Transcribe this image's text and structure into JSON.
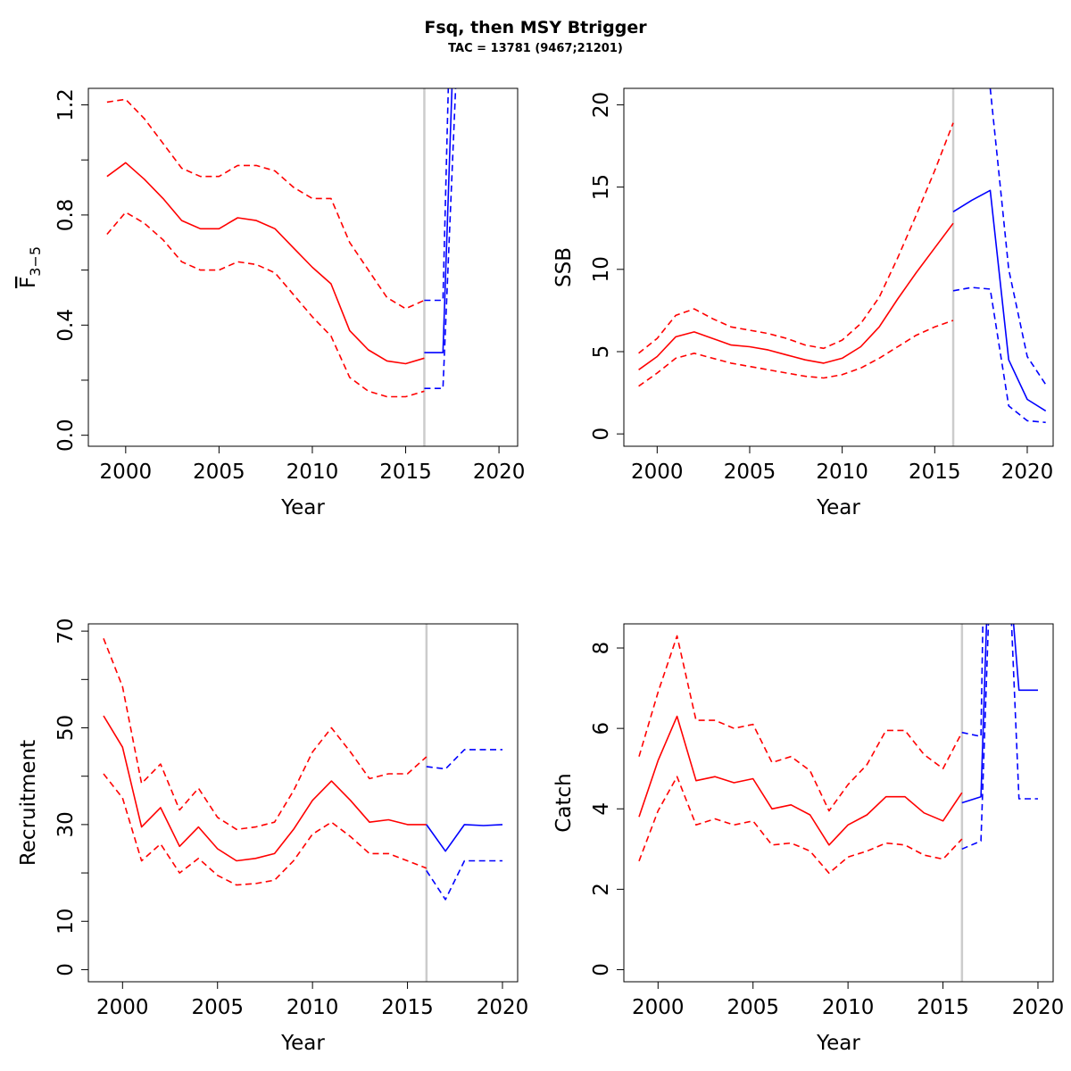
{
  "title": "Fsq, then MSY Btrigger",
  "subtitle": "TAC = 13781 (9467;21201)",
  "colors": {
    "historic": "#ff0000",
    "forecast": "#0000ff",
    "divider": "#cccccc",
    "frame": "#000000"
  },
  "chart_data": [
    {
      "type": "line",
      "id": "fbar",
      "xlabel": "Year",
      "ylabel_main": "F",
      "ylabel_sub": "3−5",
      "ylabel_overline": true,
      "xlim": [
        1998,
        2021
      ],
      "ylim": [
        -0.04,
        1.26
      ],
      "x_ticks": [
        2000,
        2005,
        2010,
        2015,
        2020
      ],
      "y_ticks": [
        0.0,
        0.2,
        0.4,
        0.6,
        0.8,
        1.0,
        1.2
      ],
      "y_tick_labels": [
        "0.0",
        "",
        "0.4",
        "",
        "0.8",
        "",
        "1.2"
      ],
      "divider_x": 2016,
      "series": [
        {
          "role": "historic-median",
          "color": "red",
          "dash": false,
          "x": [
            1999,
            2000,
            2001,
            2002,
            2003,
            2004,
            2005,
            2006,
            2007,
            2008,
            2009,
            2010,
            2011,
            2012,
            2013,
            2014,
            2015,
            2016
          ],
          "y": [
            0.94,
            0.99,
            0.93,
            0.86,
            0.78,
            0.75,
            0.75,
            0.79,
            0.78,
            0.75,
            0.68,
            0.61,
            0.55,
            0.38,
            0.31,
            0.27,
            0.26,
            0.28
          ]
        },
        {
          "role": "historic-upper",
          "color": "red",
          "dash": true,
          "x": [
            1999,
            2000,
            2001,
            2002,
            2003,
            2004,
            2005,
            2006,
            2007,
            2008,
            2009,
            2010,
            2011,
            2012,
            2013,
            2014,
            2015,
            2016
          ],
          "y": [
            1.21,
            1.22,
            1.15,
            1.06,
            0.97,
            0.94,
            0.94,
            0.98,
            0.98,
            0.96,
            0.9,
            0.86,
            0.86,
            0.7,
            0.6,
            0.5,
            0.46,
            0.49
          ]
        },
        {
          "role": "historic-lower",
          "color": "red",
          "dash": true,
          "x": [
            1999,
            2000,
            2001,
            2002,
            2003,
            2004,
            2005,
            2006,
            2007,
            2008,
            2009,
            2010,
            2011,
            2012,
            2013,
            2014,
            2015,
            2016
          ],
          "y": [
            0.73,
            0.81,
            0.77,
            0.71,
            0.63,
            0.6,
            0.6,
            0.63,
            0.62,
            0.59,
            0.51,
            0.43,
            0.36,
            0.21,
            0.16,
            0.14,
            0.14,
            0.16
          ]
        },
        {
          "role": "forecast-median",
          "color": "blue",
          "dash": false,
          "x": [
            2016,
            2017,
            2017.5
          ],
          "y": [
            0.3,
            0.3,
            1.3
          ]
        },
        {
          "role": "forecast-upper",
          "color": "blue",
          "dash": true,
          "x": [
            2016,
            2017,
            2017.3
          ],
          "y": [
            0.49,
            0.49,
            1.3
          ]
        },
        {
          "role": "forecast-lower",
          "color": "blue",
          "dash": true,
          "x": [
            2016,
            2017,
            2017.7
          ],
          "y": [
            0.17,
            0.17,
            1.3
          ]
        }
      ]
    },
    {
      "type": "line",
      "id": "ssb",
      "xlabel": "Year",
      "ylabel_main": "SSB",
      "xlim": [
        1998.2,
        2021.4
      ],
      "ylim": [
        -0.75,
        21.0
      ],
      "x_ticks": [
        2000,
        2005,
        2010,
        2015,
        2020
      ],
      "y_ticks": [
        0,
        5,
        10,
        15,
        20
      ],
      "y_tick_labels": [
        "0",
        "5",
        "10",
        "15",
        "20"
      ],
      "divider_x": 2016,
      "series": [
        {
          "role": "historic-median",
          "color": "red",
          "dash": false,
          "x": [
            1999,
            2000,
            2001,
            2002,
            2003,
            2004,
            2005,
            2006,
            2007,
            2008,
            2009,
            2010,
            2011,
            2012,
            2013,
            2014,
            2015,
            2016
          ],
          "y": [
            3.9,
            4.7,
            5.9,
            6.2,
            5.8,
            5.4,
            5.3,
            5.1,
            4.8,
            4.5,
            4.3,
            4.6,
            5.3,
            6.5,
            8.2,
            9.8,
            11.3,
            12.8
          ]
        },
        {
          "role": "historic-upper",
          "color": "red",
          "dash": true,
          "x": [
            1999,
            2000,
            2001,
            2002,
            2003,
            2004,
            2005,
            2006,
            2007,
            2008,
            2009,
            2010,
            2011,
            2012,
            2013,
            2014,
            2015,
            2016
          ],
          "y": [
            4.9,
            5.8,
            7.2,
            7.6,
            7.0,
            6.5,
            6.3,
            6.1,
            5.8,
            5.4,
            5.2,
            5.7,
            6.7,
            8.3,
            10.7,
            13.3,
            16.0,
            18.9
          ]
        },
        {
          "role": "historic-lower",
          "color": "red",
          "dash": true,
          "x": [
            1999,
            2000,
            2001,
            2002,
            2003,
            2004,
            2005,
            2006,
            2007,
            2008,
            2009,
            2010,
            2011,
            2012,
            2013,
            2014,
            2015,
            2016
          ],
          "y": [
            2.9,
            3.7,
            4.6,
            4.9,
            4.6,
            4.3,
            4.1,
            3.9,
            3.7,
            3.5,
            3.4,
            3.6,
            4.0,
            4.6,
            5.3,
            6.0,
            6.5,
            6.9
          ]
        },
        {
          "role": "forecast-median",
          "color": "blue",
          "dash": false,
          "x": [
            2016,
            2017,
            2018,
            2019,
            2020,
            2021
          ],
          "y": [
            13.5,
            14.2,
            14.8,
            4.5,
            2.1,
            1.4
          ]
        },
        {
          "role": "forecast-upper",
          "color": "blue",
          "dash": true,
          "x": [
            2018,
            2018.5,
            2019,
            2020,
            2021
          ],
          "y": [
            21.0,
            15.5,
            10.0,
            4.7,
            3.0
          ]
        },
        {
          "role": "forecast-lower",
          "color": "blue",
          "dash": true,
          "x": [
            2016,
            2017,
            2018,
            2019,
            2020,
            2021
          ],
          "y": [
            8.7,
            8.9,
            8.8,
            1.7,
            0.8,
            0.7
          ]
        }
      ]
    },
    {
      "type": "line",
      "id": "recruitment",
      "xlabel": "Year",
      "ylabel_main": "Recruitment",
      "xlim": [
        1998.2,
        2020.8
      ],
      "ylim": [
        -2.5,
        71.5
      ],
      "x_ticks": [
        2000,
        2005,
        2010,
        2015,
        2020
      ],
      "y_ticks": [
        0,
        10,
        20,
        30,
        40,
        50,
        60,
        70
      ],
      "y_tick_labels": [
        "0",
        "10",
        "",
        "30",
        "",
        "50",
        "",
        "70"
      ],
      "divider_x": 2016,
      "series": [
        {
          "role": "historic-median",
          "color": "red",
          "dash": false,
          "x": [
            1999,
            2000,
            2001,
            2002,
            2003,
            2004,
            2005,
            2006,
            2007,
            2008,
            2009,
            2010,
            2011,
            2012,
            2013,
            2014,
            2015,
            2016
          ],
          "y": [
            52.5,
            46,
            29.5,
            33.5,
            25.5,
            29.5,
            25,
            22.5,
            23,
            24,
            29,
            35,
            39,
            35,
            30.5,
            31,
            30,
            30
          ]
        },
        {
          "role": "historic-upper",
          "color": "red",
          "dash": true,
          "x": [
            1999,
            2000,
            2001,
            2002,
            2003,
            2004,
            2005,
            2006,
            2007,
            2008,
            2009,
            2010,
            2011,
            2012,
            2013,
            2014,
            2015,
            2016
          ],
          "y": [
            68.5,
            58.5,
            38.5,
            42.5,
            33,
            37.5,
            31.5,
            29,
            29.5,
            30.5,
            37,
            45,
            50,
            45,
            39.5,
            40.5,
            40.5,
            44
          ]
        },
        {
          "role": "historic-lower",
          "color": "red",
          "dash": true,
          "x": [
            1999,
            2000,
            2001,
            2002,
            2003,
            2004,
            2005,
            2006,
            2007,
            2008,
            2009,
            2010,
            2011,
            2012,
            2013,
            2014,
            2015,
            2016
          ],
          "y": [
            40.5,
            35.5,
            22.5,
            26,
            20,
            23,
            19.5,
            17.5,
            17.8,
            18.5,
            22.5,
            28,
            30.5,
            27.5,
            24,
            24,
            22.5,
            21
          ]
        },
        {
          "role": "forecast-median",
          "color": "blue",
          "dash": false,
          "x": [
            2016,
            2017,
            2018,
            2019,
            2020
          ],
          "y": [
            30,
            24.5,
            30,
            29.8,
            30
          ]
        },
        {
          "role": "forecast-upper",
          "color": "blue",
          "dash": true,
          "x": [
            2016,
            2017,
            2018,
            2019,
            2020
          ],
          "y": [
            42,
            41.5,
            45.5,
            45.5,
            45.5
          ]
        },
        {
          "role": "forecast-lower",
          "color": "blue",
          "dash": true,
          "x": [
            2016,
            2017,
            2018,
            2019,
            2020
          ],
          "y": [
            20.5,
            14.5,
            22.5,
            22.5,
            22.5
          ]
        }
      ]
    },
    {
      "type": "line",
      "id": "catch",
      "xlabel": "Year",
      "ylabel_main": "Catch",
      "xlim": [
        1998.2,
        2020.8
      ],
      "ylim": [
        -0.3,
        8.6
      ],
      "x_ticks": [
        2000,
        2005,
        2010,
        2015,
        2020
      ],
      "y_ticks": [
        0,
        2,
        4,
        6,
        8
      ],
      "y_tick_labels": [
        "0",
        "2",
        "4",
        "6",
        "8"
      ],
      "divider_x": 2016,
      "series": [
        {
          "role": "historic-median",
          "color": "red",
          "dash": false,
          "x": [
            1999,
            2000,
            2001,
            2002,
            2003,
            2004,
            2005,
            2006,
            2007,
            2008,
            2009,
            2010,
            2011,
            2012,
            2013,
            2014,
            2015,
            2016
          ],
          "y": [
            3.8,
            5.2,
            6.3,
            4.7,
            4.8,
            4.65,
            4.75,
            4.0,
            4.1,
            3.85,
            3.1,
            3.6,
            3.85,
            4.3,
            4.3,
            3.9,
            3.7,
            4.4
          ]
        },
        {
          "role": "historic-upper",
          "color": "red",
          "dash": true,
          "x": [
            1999,
            2000,
            2001,
            2002,
            2003,
            2004,
            2005,
            2006,
            2007,
            2008,
            2009,
            2010,
            2011,
            2012,
            2013,
            2014,
            2015,
            2016
          ],
          "y": [
            5.3,
            6.9,
            8.3,
            6.2,
            6.2,
            6.0,
            6.1,
            5.15,
            5.3,
            4.95,
            3.95,
            4.6,
            5.1,
            5.95,
            5.95,
            5.35,
            5.0,
            5.9
          ]
        },
        {
          "role": "historic-lower",
          "color": "red",
          "dash": true,
          "x": [
            1999,
            2000,
            2001,
            2002,
            2003,
            2004,
            2005,
            2006,
            2007,
            2008,
            2009,
            2010,
            2011,
            2012,
            2013,
            2014,
            2015,
            2016
          ],
          "y": [
            2.7,
            3.95,
            4.8,
            3.6,
            3.75,
            3.6,
            3.7,
            3.1,
            3.15,
            2.95,
            2.4,
            2.8,
            2.95,
            3.15,
            3.1,
            2.85,
            2.75,
            3.25
          ]
        },
        {
          "role": "forecast-median",
          "color": "blue",
          "dash": false,
          "x": [
            2016,
            2017,
            2017.3
          ],
          "y": [
            4.15,
            4.3,
            8.7
          ]
        },
        {
          "role": "forecast-median-return",
          "color": "blue",
          "dash": false,
          "x": [
            2018.7,
            2019,
            2020
          ],
          "y": [
            8.7,
            6.95,
            6.95
          ]
        },
        {
          "role": "forecast-upper",
          "color": "blue",
          "dash": true,
          "x": [
            2016,
            2017,
            2017.1
          ],
          "y": [
            5.9,
            5.8,
            8.7
          ]
        },
        {
          "role": "forecast-lower",
          "color": "blue",
          "dash": true,
          "x": [
            2016,
            2017,
            2017.4
          ],
          "y": [
            3.0,
            3.2,
            8.7
          ]
        },
        {
          "role": "forecast-lower-return",
          "color": "blue",
          "dash": true,
          "x": [
            2018.6,
            2019,
            2020
          ],
          "y": [
            8.7,
            4.25,
            4.25
          ]
        }
      ]
    }
  ]
}
